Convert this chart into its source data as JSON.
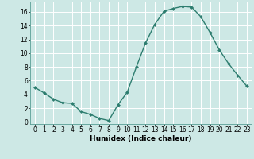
{
  "x": [
    0,
    1,
    2,
    3,
    4,
    5,
    6,
    7,
    8,
    9,
    10,
    11,
    12,
    13,
    14,
    15,
    16,
    17,
    18,
    19,
    20,
    21,
    22,
    23
  ],
  "y": [
    5.0,
    4.2,
    3.3,
    2.8,
    2.7,
    1.5,
    1.1,
    0.5,
    0.2,
    2.5,
    4.3,
    8.0,
    11.5,
    14.2,
    16.1,
    16.5,
    16.8,
    16.7,
    15.3,
    13.0,
    10.5,
    8.5,
    6.8,
    5.2
  ],
  "line_color": "#2d7d6f",
  "marker": "D",
  "marker_size": 2.0,
  "line_width": 1.0,
  "bg_color": "#cde8e5",
  "grid_color": "#ffffff",
  "xlabel": "Humidex (Indice chaleur)",
  "xlim": [
    -0.5,
    23.5
  ],
  "ylim": [
    -0.3,
    17.5
  ],
  "yticks": [
    0,
    2,
    4,
    6,
    8,
    10,
    12,
    14,
    16
  ],
  "xticks": [
    0,
    1,
    2,
    3,
    4,
    5,
    6,
    7,
    8,
    9,
    10,
    11,
    12,
    13,
    14,
    15,
    16,
    17,
    18,
    19,
    20,
    21,
    22,
    23
  ],
  "xlabel_fontsize": 6.5,
  "tick_fontsize": 5.5
}
